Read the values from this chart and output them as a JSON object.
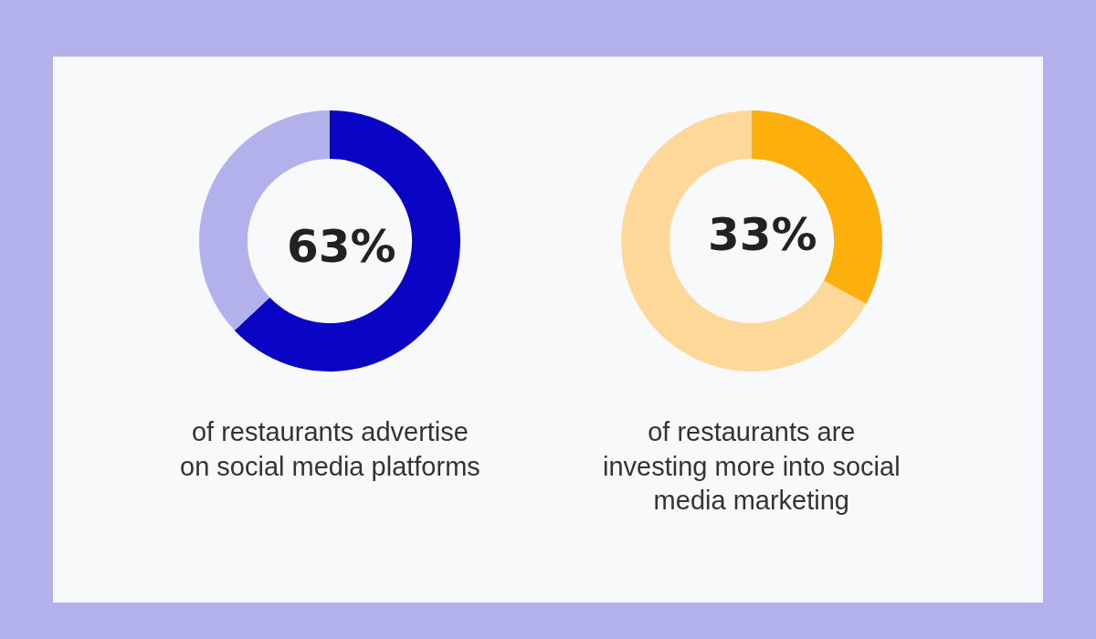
{
  "chart_data": [
    {
      "type": "donut",
      "categories": [
        null,
        null
      ],
      "values": [
        63,
        37
      ],
      "colors": [
        "#0a04c4",
        "#b3b1ec"
      ],
      "value_labels": [
        "63%",
        null
      ],
      "annotations": [
        "of restaurants advertise on social media platforms"
      ]
    },
    {
      "type": "donut",
      "categories": [
        null,
        null
      ],
      "values": [
        33,
        67
      ],
      "colors": [
        "#fdb00c",
        "#fed898"
      ],
      "value_labels": [
        "33%",
        null
      ],
      "annotations": [
        "of restaurants are investing more into social media marketing"
      ]
    }
  ]
}
